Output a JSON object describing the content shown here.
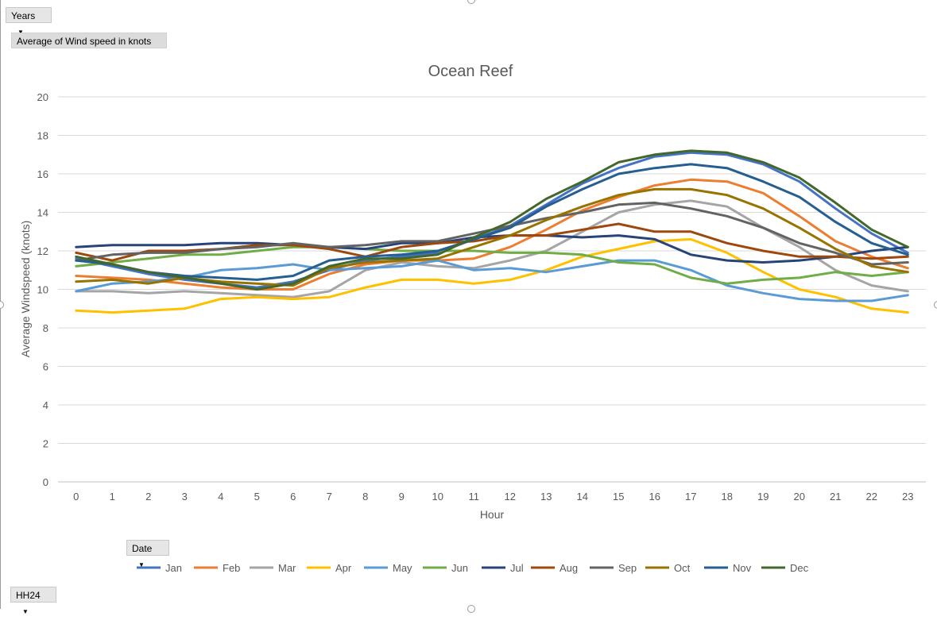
{
  "pivot": {
    "filter_field": "Years",
    "value_field": "Average of Wind speed in knots",
    "legend_field": "Date",
    "axis_field": "HH24"
  },
  "chart_data": {
    "type": "line",
    "title": "Ocean Reef",
    "xlabel": "Hour",
    "ylabel": "Average Windspeed  (knots)",
    "ylim": [
      0,
      20
    ],
    "yticks": [
      0,
      2,
      4,
      6,
      8,
      10,
      12,
      14,
      16,
      18,
      20
    ],
    "grid": true,
    "legend_position": "bottom",
    "categories": [
      "0",
      "1",
      "2",
      "3",
      "4",
      "5",
      "6",
      "7",
      "8",
      "9",
      "10",
      "11",
      "12",
      "13",
      "14",
      "15",
      "16",
      "17",
      "18",
      "19",
      "20",
      "21",
      "22",
      "23"
    ],
    "series": [
      {
        "name": "Jan",
        "color": "#4472c4",
        "values": [
          11.6,
          11.2,
          10.8,
          10.5,
          10.3,
          10.1,
          10.4,
          11.0,
          11.5,
          11.7,
          11.9,
          12.6,
          13.3,
          14.4,
          15.5,
          16.3,
          16.9,
          17.1,
          17.0,
          16.5,
          15.6,
          14.2,
          12.9,
          11.9
        ]
      },
      {
        "name": "Feb",
        "color": "#ed7d31",
        "values": [
          10.7,
          10.6,
          10.5,
          10.3,
          10.1,
          10.0,
          10.0,
          10.8,
          11.3,
          11.5,
          11.5,
          11.6,
          12.2,
          13.1,
          14.1,
          14.8,
          15.4,
          15.7,
          15.6,
          15.0,
          13.8,
          12.5,
          11.7,
          11.1
        ]
      },
      {
        "name": "Mar",
        "color": "#a5a5a5",
        "values": [
          9.9,
          9.9,
          9.8,
          9.9,
          9.8,
          9.7,
          9.6,
          9.9,
          11.0,
          11.4,
          11.2,
          11.1,
          11.5,
          12.0,
          13.0,
          14.0,
          14.4,
          14.6,
          14.3,
          13.2,
          12.2,
          11.0,
          10.2,
          9.9
        ]
      },
      {
        "name": "Apr",
        "color": "#ffc000",
        "values": [
          8.9,
          8.8,
          8.9,
          9.0,
          9.5,
          9.6,
          9.5,
          9.6,
          10.1,
          10.5,
          10.5,
          10.3,
          10.5,
          11.0,
          11.7,
          12.1,
          12.5,
          12.6,
          11.9,
          10.9,
          10.0,
          9.6,
          9.0,
          8.8
        ]
      },
      {
        "name": "May",
        "color": "#5b9bd5",
        "values": [
          9.9,
          10.3,
          10.4,
          10.6,
          11.0,
          11.1,
          11.3,
          11.0,
          11.1,
          11.2,
          11.5,
          11.0,
          11.1,
          10.9,
          11.2,
          11.5,
          11.5,
          11.0,
          10.2,
          9.8,
          9.5,
          9.4,
          9.4,
          9.7
        ]
      },
      {
        "name": "Jun",
        "color": "#70ad47",
        "values": [
          11.2,
          11.4,
          11.6,
          11.8,
          11.8,
          12.0,
          12.2,
          12.2,
          12.1,
          12.0,
          12.0,
          12.0,
          11.9,
          11.9,
          11.8,
          11.4,
          11.3,
          10.6,
          10.3,
          10.5,
          10.6,
          10.9,
          10.7,
          10.9
        ]
      },
      {
        "name": "Jul",
        "color": "#264478",
        "values": [
          12.2,
          12.3,
          12.3,
          12.3,
          12.4,
          12.4,
          12.3,
          12.2,
          12.1,
          12.4,
          12.4,
          12.7,
          12.8,
          12.8,
          12.7,
          12.8,
          12.6,
          11.8,
          11.5,
          11.4,
          11.5,
          11.7,
          12.0,
          12.2
        ]
      },
      {
        "name": "Aug",
        "color": "#9e480e",
        "values": [
          11.9,
          11.5,
          12.0,
          12.0,
          12.1,
          12.3,
          12.3,
          12.1,
          11.7,
          12.2,
          12.4,
          12.5,
          12.8,
          12.8,
          13.1,
          13.4,
          13.0,
          13.0,
          12.4,
          12.0,
          11.7,
          11.7,
          11.6,
          11.7
        ]
      },
      {
        "name": "Sep",
        "color": "#636363",
        "values": [
          11.5,
          11.8,
          11.9,
          11.9,
          12.1,
          12.2,
          12.4,
          12.2,
          12.3,
          12.5,
          12.5,
          12.9,
          13.3,
          13.7,
          14.0,
          14.4,
          14.5,
          14.2,
          13.8,
          13.2,
          12.4,
          11.9,
          11.3,
          11.4
        ]
      },
      {
        "name": "Oct",
        "color": "#997300",
        "values": [
          10.4,
          10.5,
          10.3,
          10.6,
          10.4,
          10.3,
          10.2,
          11.1,
          11.4,
          11.5,
          11.6,
          12.2,
          12.8,
          13.6,
          14.3,
          14.9,
          15.2,
          15.2,
          14.9,
          14.2,
          13.2,
          12.1,
          11.2,
          10.9
        ]
      },
      {
        "name": "Nov",
        "color": "#255e91",
        "values": [
          11.5,
          11.3,
          10.9,
          10.7,
          10.6,
          10.5,
          10.7,
          11.5,
          11.7,
          11.8,
          12.0,
          12.6,
          13.2,
          14.3,
          15.2,
          16.0,
          16.3,
          16.5,
          16.3,
          15.6,
          14.8,
          13.5,
          12.4,
          11.8
        ]
      },
      {
        "name": "Dec",
        "color": "#43682b",
        "values": [
          11.7,
          11.3,
          10.9,
          10.6,
          10.3,
          10.0,
          10.3,
          11.2,
          11.6,
          11.6,
          11.8,
          12.7,
          13.5,
          14.7,
          15.6,
          16.6,
          17.0,
          17.2,
          17.1,
          16.6,
          15.8,
          14.5,
          13.1,
          12.2
        ]
      }
    ]
  }
}
